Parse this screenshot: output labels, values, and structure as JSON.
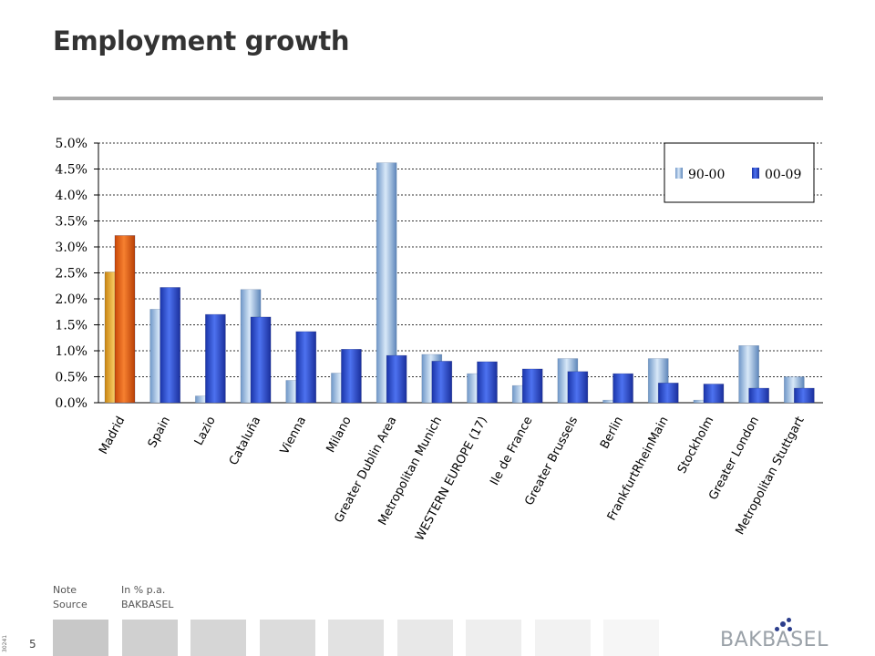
{
  "header": {
    "title": "Employment growth"
  },
  "footer": {
    "note_label": "Note",
    "note_value": "In % p.a.",
    "source_label": "Source",
    "source_value": "BAKBASEL",
    "page_number": "5",
    "side_code": "30241",
    "brand": "BAKBASEL",
    "brand_color": "#2c3e8c",
    "tile_colors": [
      "#c8c8c8",
      "#d0d0d0",
      "#d6d6d6",
      "#dcdcdc",
      "#e2e2e2",
      "#e8e8e8",
      "#eeeeee",
      "#f2f2f2",
      "#f6f6f6"
    ]
  },
  "chart_data": {
    "type": "bar",
    "categories": [
      "Madrid",
      "Spain",
      "Lazio",
      "Cataluña",
      "Vienna",
      "Milano",
      "Greater Dublin Area",
      "Metropolitan Munich",
      "WESTERN EUROPE (17)",
      "Ile de France",
      "Greater Brussels",
      "Berlin",
      "FrankfurtRheinMain",
      "Stockholm",
      "Greater London",
      "Metropolitan Stuttgart"
    ],
    "series": [
      {
        "name": "90-00",
        "values": [
          2.52,
          1.8,
          0.13,
          2.18,
          0.43,
          0.57,
          4.62,
          0.93,
          0.56,
          0.33,
          0.85,
          0.05,
          0.85,
          0.05,
          1.1,
          0.5
        ],
        "color": "#9dc3e6",
        "highlight_color": "#e8a020"
      },
      {
        "name": "00-09",
        "values": [
          3.22,
          2.22,
          1.7,
          1.65,
          1.37,
          1.03,
          0.91,
          0.8,
          0.79,
          0.65,
          0.6,
          0.56,
          0.38,
          0.36,
          0.28,
          0.28
        ],
        "color": "#2e4fd8",
        "highlight_color": "#e85a10"
      }
    ],
    "highlight_category": "Madrid",
    "ylim": [
      0,
      5
    ],
    "yticks": [
      "0.0%",
      "0.5%",
      "1.0%",
      "1.5%",
      "2.0%",
      "2.5%",
      "3.0%",
      "3.5%",
      "4.0%",
      "4.5%",
      "5.0%"
    ],
    "grid": true,
    "legend_position": "top-right"
  }
}
